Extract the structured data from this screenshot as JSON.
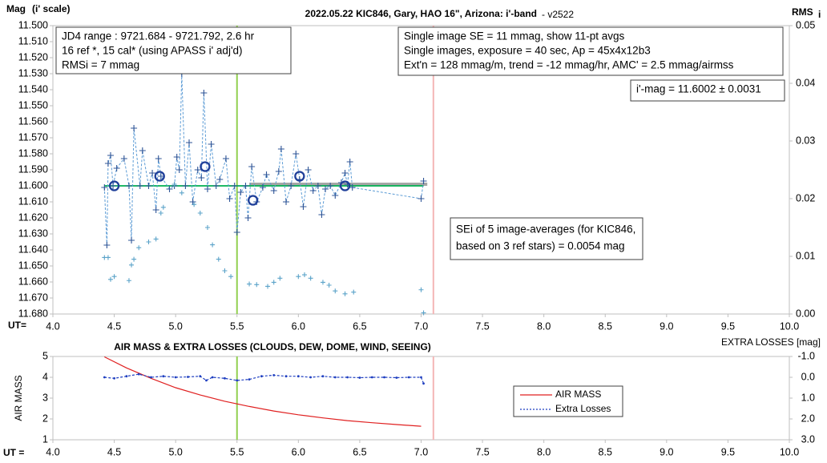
{
  "chart_data": [
    {
      "type": "line",
      "title": "2022.05.22 KIC846, Gary, HAO 16\", Arizona: i'-band",
      "subtitle": "- v2522",
      "y_label": "Mag",
      "y_label_unit": "(i' scale)",
      "y2_label": "RMS",
      "y2_label_sub": "i",
      "x_label": "UT=",
      "xlim": [
        4.0,
        10.0
      ],
      "xticks": [
        {
          "value": 4.0,
          "label": "4.0"
        },
        {
          "value": 4.5,
          "label": "4.5"
        },
        {
          "value": 5.0,
          "label": "5.0"
        },
        {
          "value": 5.5,
          "label": "5.5"
        },
        {
          "value": 6.0,
          "label": "6.0"
        },
        {
          "value": 6.5,
          "label": "6.5"
        },
        {
          "value": 7.0,
          "label": "7.0"
        },
        {
          "value": 7.5,
          "label": "7.5"
        },
        {
          "value": 8.0,
          "label": "8.0"
        },
        {
          "value": 8.5,
          "label": "8.5"
        },
        {
          "value": 9.0,
          "label": "9.0"
        },
        {
          "value": 9.5,
          "label": "9.5"
        },
        {
          "value": 10.0,
          "label": "10.0"
        }
      ],
      "ylim": [
        11.5,
        11.68
      ],
      "y_inverted": true,
      "yticks": [
        {
          "value": 11.5,
          "label": "11.500"
        },
        {
          "value": 11.51,
          "label": "11.510"
        },
        {
          "value": 11.52,
          "label": "11.520"
        },
        {
          "value": 11.53,
          "label": "11.530"
        },
        {
          "value": 11.54,
          "label": "11.540"
        },
        {
          "value": 11.55,
          "label": "11.550"
        },
        {
          "value": 11.56,
          "label": "11.560"
        },
        {
          "value": 11.57,
          "label": "11.570"
        },
        {
          "value": 11.58,
          "label": "11.580"
        },
        {
          "value": 11.59,
          "label": "11.590"
        },
        {
          "value": 11.6,
          "label": "11.600"
        },
        {
          "value": 11.61,
          "label": "11.610"
        },
        {
          "value": 11.62,
          "label": "11.620"
        },
        {
          "value": 11.63,
          "label": "11.630"
        },
        {
          "value": 11.64,
          "label": "11.640"
        },
        {
          "value": 11.65,
          "label": "11.650"
        },
        {
          "value": 11.66,
          "label": "11.660"
        },
        {
          "value": 11.67,
          "label": "11.670"
        },
        {
          "value": 11.68,
          "label": "11.680"
        }
      ],
      "y2lim": [
        0,
        0.05
      ],
      "y2ticks": [
        {
          "value": 0,
          "label": "0.00"
        },
        {
          "value": 0.01,
          "label": "0.01"
        },
        {
          "value": 0.02,
          "label": "0.02"
        },
        {
          "value": 0.03,
          "label": "0.03"
        },
        {
          "value": 0.04,
          "label": "0.04"
        },
        {
          "value": 0.05,
          "label": "0.05"
        }
      ],
      "vlines": [
        {
          "x": 5.5,
          "color": "#92d050"
        },
        {
          "x": 7.1,
          "color": "#f4b6b6"
        }
      ],
      "series": [
        {
          "color": "#a6a6a6",
          "line": "solid",
          "width": 4,
          "marker": null,
          "x": [
            5.6,
            7.05
          ],
          "values": [
            11.599,
            11.599
          ]
        },
        {
          "color": "#00b050",
          "line": "solid",
          "width": 1.8,
          "marker": null,
          "x": [
            4.42,
            7.02
          ],
          "values": [
            11.6,
            11.6
          ]
        },
        {
          "color": "#2f5597",
          "line": "dashed",
          "linecolor": "#5b9bd5",
          "width": 1,
          "marker": "plus",
          "x": [
            4.42,
            4.44,
            4.45,
            4.47,
            4.49,
            4.52,
            4.58,
            4.62,
            4.64,
            4.66,
            4.71,
            4.73,
            4.78,
            4.81,
            4.84,
            4.86,
            4.88,
            4.95,
            4.99,
            5.01,
            5.03,
            5.05,
            5.08,
            5.11,
            5.14,
            5.18,
            5.21,
            5.23,
            5.26,
            5.29,
            5.33,
            5.36,
            5.41,
            5.44,
            5.48,
            5.5,
            5.53,
            5.57,
            5.59,
            5.62,
            5.66,
            5.71,
            5.74,
            5.8,
            5.84,
            5.86,
            5.9,
            5.94,
            5.98,
            6.01,
            6.04,
            6.08,
            6.12,
            6.16,
            6.19,
            6.22,
            6.26,
            6.3,
            6.35,
            6.38,
            6.4,
            6.42,
            6.44,
            7.0,
            7.02
          ],
          "values": [
            11.601,
            11.637,
            11.586,
            11.581,
            11.6,
            11.589,
            11.583,
            11.6,
            11.634,
            11.564,
            11.6,
            11.578,
            11.6,
            11.592,
            11.615,
            11.583,
            11.594,
            11.602,
            11.6,
            11.582,
            11.59,
            11.53,
            11.6,
            11.573,
            11.61,
            11.59,
            11.595,
            11.542,
            11.602,
            11.574,
            11.6,
            11.596,
            11.583,
            11.608,
            11.6,
            11.629,
            11.604,
            11.6,
            11.62,
            11.588,
            11.61,
            11.601,
            11.593,
            11.603,
            11.591,
            11.577,
            11.61,
            11.6,
            11.58,
            11.596,
            11.613,
            11.59,
            11.603,
            11.6,
            11.618,
            11.602,
            11.6,
            11.606,
            11.598,
            11.592,
            11.599,
            11.585,
            11.601,
            11.608,
            11.597
          ]
        },
        {
          "color": "#1f3f99",
          "line": null,
          "marker": "circle",
          "x": [
            4.5,
            4.87,
            5.24,
            5.63,
            6.01,
            6.38
          ],
          "values": [
            11.6,
            11.594,
            11.588,
            11.609,
            11.594,
            11.6
          ]
        },
        {
          "color": "#5ba3c9",
          "line": null,
          "marker": "smallplus",
          "axis": "y2",
          "x": [
            4.42,
            4.45,
            4.47,
            4.5,
            4.62,
            4.64,
            4.66,
            4.7,
            4.78,
            4.84,
            4.88,
            4.9,
            4.99,
            5.05,
            5.15,
            5.2,
            5.26,
            5.3,
            5.35,
            5.4,
            5.45,
            5.6,
            5.66,
            5.75,
            5.8,
            5.85,
            6.0,
            6.05,
            6.1,
            6.2,
            6.25,
            6.3,
            6.38,
            6.45,
            7.0,
            7.02
          ],
          "values": [
            0.0098,
            0.0098,
            0.006,
            0.0065,
            0.0058,
            0.0085,
            0.0095,
            0.0115,
            0.0125,
            0.013,
            0.0175,
            0.0185,
            0.0225,
            0.021,
            0.019,
            0.0175,
            0.015,
            0.012,
            0.0095,
            0.0075,
            0.0065,
            0.0052,
            0.0051,
            0.0048,
            0.0055,
            0.0062,
            0.0065,
            0.0068,
            0.0062,
            0.0055,
            0.005,
            0.004,
            0.0035,
            0.0038,
            0.0042,
            0.0002
          ]
        }
      ],
      "annotations": [
        {
          "lines": [
            "JD4 range : 9721.684 - 9721.792, 2.6  hr",
            "16 ref *, 15 cal* (using APASS i' adj'd)",
            "RMSi = 7 mmag"
          ]
        },
        {
          "lines": [
            "Single image SE = 11 mmag, show 11-pt avgs",
            "Single images, exposure = 40 sec, Ap = 45x4x12b3",
            "Ext'n = 128 mmag/m, trend = -12 mmag/hr, AMC' = 2.5 mmag/airmss"
          ]
        },
        {
          "lines": [
            "i'-mag = 11.6002 ± 0.0031"
          ]
        },
        {
          "lines": [
            "SEi of 5 image-averages (for KIC846,",
            "based on 3 ref stars) = 0.0054 mag"
          ]
        }
      ]
    },
    {
      "type": "line",
      "title": "AIR MASS & EXTRA LOSSES (CLOUDS, DEW, DOME, WIND, SEEING)",
      "y_label": "AIR MASS",
      "y2_label": "EXTRA LOSSES [mag]",
      "x_label": "UT =",
      "xlim": [
        4.0,
        10.0
      ],
      "xticks": [
        {
          "value": 4.0,
          "label": "4.0"
        },
        {
          "value": 4.5,
          "label": "4.5"
        },
        {
          "value": 5.0,
          "label": "5.0"
        },
        {
          "value": 5.5,
          "label": "5.5"
        },
        {
          "value": 6.0,
          "label": "6.0"
        },
        {
          "value": 6.5,
          "label": "6.5"
        },
        {
          "value": 7.0,
          "label": "7.0"
        },
        {
          "value": 7.5,
          "label": "7.5"
        },
        {
          "value": 8.0,
          "label": "8.0"
        },
        {
          "value": 8.5,
          "label": "8.5"
        },
        {
          "value": 9.0,
          "label": "9.0"
        },
        {
          "value": 9.5,
          "label": "9.5"
        },
        {
          "value": 10.0,
          "label": "10.0"
        }
      ],
      "ylim": [
        1,
        5
      ],
      "yticks": [
        1,
        2,
        3,
        4,
        5
      ],
      "y2lim": [
        -1,
        3
      ],
      "y2_inverted": true,
      "y2ticks": [
        {
          "value": -1,
          "label": "-1.0"
        },
        {
          "value": 0,
          "label": "0.0"
        },
        {
          "value": 1,
          "label": "1.0"
        },
        {
          "value": 2,
          "label": "2.0"
        },
        {
          "value": 3,
          "label": "3.0"
        }
      ],
      "vlines": [
        {
          "x": 5.5,
          "color": "#92d050"
        },
        {
          "x": 7.1,
          "color": "#f4b6b6"
        }
      ],
      "legend": true,
      "series": [
        {
          "name": "AIR MASS",
          "color": "#e02020",
          "line": "solid",
          "width": 1.2,
          "marker": null,
          "x": [
            4.42,
            4.6,
            4.8,
            5.0,
            5.2,
            5.4,
            5.6,
            5.8,
            6.0,
            6.2,
            6.4,
            6.6,
            6.8,
            7.0
          ],
          "values": [
            4.98,
            4.45,
            3.95,
            3.5,
            3.15,
            2.85,
            2.6,
            2.38,
            2.2,
            2.05,
            1.92,
            1.82,
            1.73,
            1.65
          ]
        },
        {
          "name": "Extra Losses",
          "color": "#1f3fc0",
          "line": "dashed",
          "width": 1.2,
          "marker": "dot",
          "axis": "y2",
          "x": [
            4.42,
            4.5,
            4.6,
            4.7,
            4.8,
            4.9,
            5.0,
            5.1,
            5.2,
            5.25,
            5.3,
            5.4,
            5.5,
            5.6,
            5.7,
            5.8,
            5.9,
            6.0,
            6.1,
            6.2,
            6.3,
            6.4,
            6.5,
            6.6,
            6.7,
            6.8,
            6.9,
            7.0,
            7.02
          ],
          "values": [
            0.0,
            0.05,
            -0.05,
            -0.15,
            0.0,
            -0.05,
            0.0,
            -0.02,
            -0.05,
            0.15,
            0.0,
            0.05,
            0.15,
            0.1,
            -0.05,
            -0.1,
            -0.05,
            -0.05,
            0.0,
            -0.05,
            0.0,
            0.0,
            0.02,
            0.0,
            0.0,
            0.02,
            0.0,
            0.0,
            0.3
          ]
        }
      ]
    }
  ]
}
